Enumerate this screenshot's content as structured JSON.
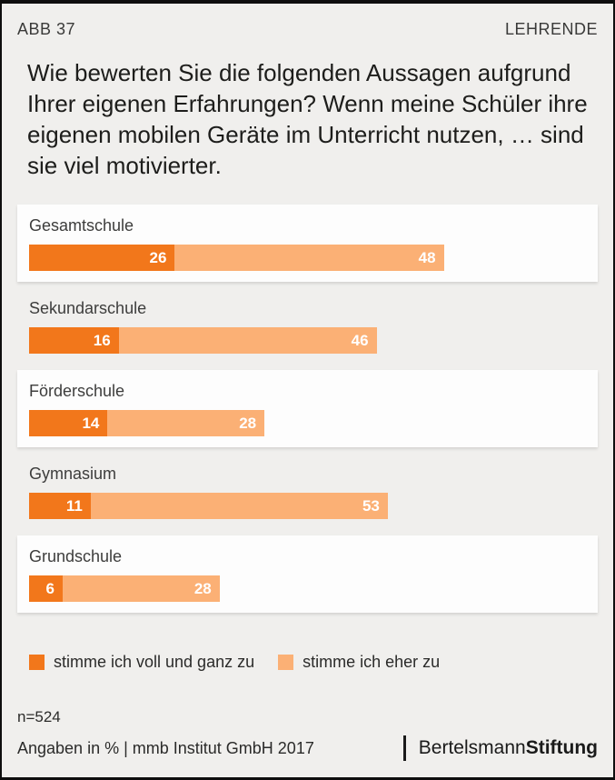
{
  "header": {
    "figure_label": "ABB 37",
    "audience_label": "LEHRENDE"
  },
  "title": "Wie bewerten Sie die folgenden Aussagen aufgrund Ihrer eigenen Erfahrungen? Wenn meine Schüler ihre eigenen mobilen Geräte im Unterricht nutzen, … sind sie viel motivierter.",
  "chart_data": {
    "type": "bar",
    "orientation": "horizontal",
    "stacked": true,
    "unit": "%",
    "xlim": [
      0,
      100
    ],
    "categories": [
      "Gesamtschule",
      "Sekundarschule",
      "Förderschule",
      "Gymnasium",
      "Grundschule"
    ],
    "series": [
      {
        "name": "stimme ich voll und ganz zu",
        "color": "#f2771b",
        "values": [
          26,
          16,
          14,
          11,
          6
        ]
      },
      {
        "name": "stimme ich eher zu",
        "color": "#fbb075",
        "values": [
          48,
          46,
          28,
          53,
          28
        ]
      }
    ],
    "value_labels": "inside-right-white-bold",
    "row_backgrounds": [
      "white",
      "transparent",
      "white",
      "transparent",
      "white"
    ],
    "legend_position": "bottom"
  },
  "legend": [
    {
      "label": "stimme ich voll und ganz zu",
      "color": "#f2771b"
    },
    {
      "label": "stimme ich eher zu",
      "color": "#fbb075"
    }
  ],
  "footer": {
    "sample_size": "n=524",
    "source_note": "Angaben in % | mmb Institut GmbH 2017",
    "logo": {
      "regular": "Bertelsmann",
      "bold": "Stiftung"
    }
  },
  "colors": {
    "accent_dark": "#f2771b",
    "accent_light": "#fbb075",
    "background": "#f0efed",
    "card": "#fdfdfd",
    "frame": "#0e0e0e"
  }
}
